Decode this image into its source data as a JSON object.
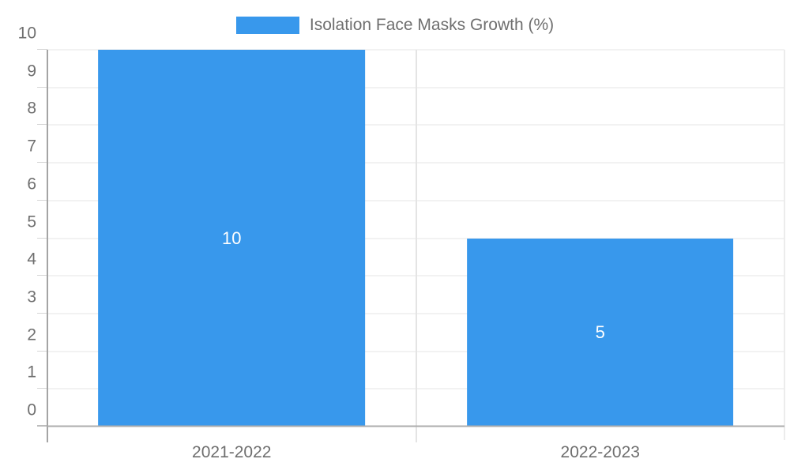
{
  "legend": {
    "label": "Isolation Face Masks Growth (%)"
  },
  "colors": {
    "bar": "#3898EC",
    "data_label": "#FFFFFF",
    "text": "#6F6F6F",
    "gridline": "#E4E4E4",
    "baseline": "#ADADAD",
    "axis_line": "#A4A4A4"
  },
  "chart_data": {
    "type": "bar",
    "title": "",
    "xlabel": "",
    "ylabel": "",
    "categories": [
      "2021-2022",
      "2022-2023"
    ],
    "values": [
      10,
      5
    ],
    "data_labels": [
      "10",
      "5"
    ],
    "series": [
      {
        "name": "Isolation Face Masks Growth (%)",
        "values": [
          10,
          5
        ]
      }
    ],
    "ylim": [
      0,
      10
    ],
    "yticks": [
      0,
      1,
      2,
      3,
      4,
      5,
      6,
      7,
      8,
      9,
      10
    ],
    "grid": true,
    "legend_position": "top",
    "bar_band_fraction": 0.724
  }
}
